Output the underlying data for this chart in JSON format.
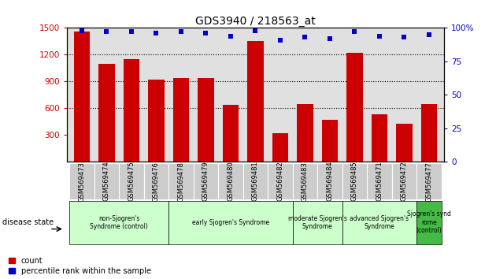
{
  "title": "GDS3940 / 218563_at",
  "samples": [
    "GSM569473",
    "GSM569474",
    "GSM569475",
    "GSM569476",
    "GSM569478",
    "GSM569479",
    "GSM569480",
    "GSM569481",
    "GSM569482",
    "GSM569483",
    "GSM569484",
    "GSM569485",
    "GSM569471",
    "GSM569472",
    "GSM569477"
  ],
  "counts": [
    1460,
    1095,
    1150,
    920,
    940,
    940,
    640,
    1355,
    320,
    650,
    470,
    1220,
    530,
    430,
    650
  ],
  "percentile_ranks": [
    98,
    97,
    97,
    96,
    97,
    96,
    94,
    98,
    91,
    93,
    92,
    97,
    94,
    93,
    95
  ],
  "bar_color": "#cc0000",
  "dot_color": "#0000cc",
  "ylim_left": [
    0,
    1500
  ],
  "ylim_right": [
    0,
    100
  ],
  "yticks_left": [
    300,
    600,
    900,
    1200,
    1500
  ],
  "yticks_right": [
    0,
    25,
    50,
    75,
    100
  ],
  "plot_bg": "#e0e0e0",
  "title_fontsize": 10,
  "group_labels": [
    "non-Sjogren's\nSyndrome (control)",
    "early Sjogren's Syndrome",
    "moderate Sjogren's\nSyndrome",
    "advanced Sjogren's\nSyndrome",
    "Sjogren's synd\nrome\n(control)"
  ],
  "group_ranges": [
    [
      0,
      4
    ],
    [
      4,
      9
    ],
    [
      9,
      11
    ],
    [
      11,
      14
    ],
    [
      14,
      15
    ]
  ],
  "group_colors": [
    "#ccffcc",
    "#ccffcc",
    "#ccffcc",
    "#ccffcc",
    "#44bb44"
  ],
  "disease_state_label": "disease state"
}
